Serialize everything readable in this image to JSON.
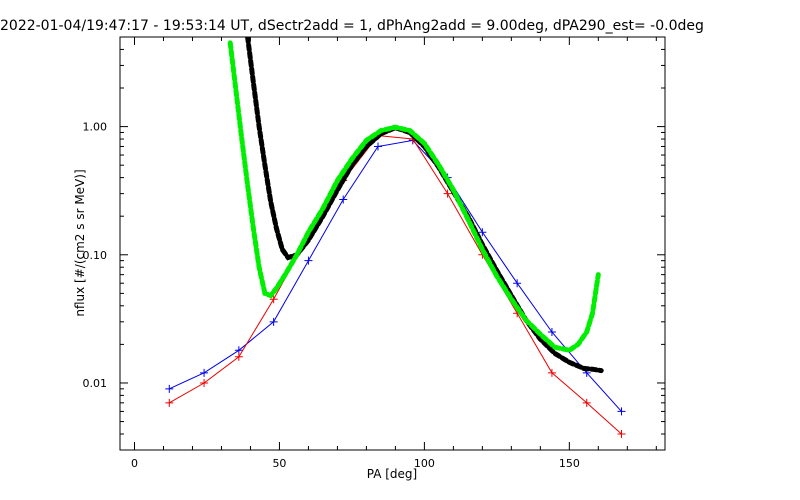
{
  "chart_data": {
    "type": "line",
    "title": "2022-01-04/19:47:17 - 19:53:14 UT, dSectr2add = 1, dPhAng2add = 9.00deg, dPA290_est=  -0.0deg",
    "xlabel": "PA [deg]",
    "ylabel": "nflux [#/(cm2 s sr MeV)]",
    "xlim": [
      -5,
      183
    ],
    "ylim": [
      0.003,
      5.0
    ],
    "yscale": "log",
    "grid": false,
    "legend": "none",
    "x_ticks": [
      {
        "value": 0,
        "label": "0"
      },
      {
        "value": 50,
        "label": "50"
      },
      {
        "value": 100,
        "label": "100"
      },
      {
        "value": 150,
        "label": "150"
      }
    ],
    "y_ticks": [
      {
        "value": 0.01,
        "label": "0.01"
      },
      {
        "value": 0.1,
        "label": "0.10"
      },
      {
        "value": 1.0,
        "label": "1.00"
      }
    ],
    "colors": {
      "series_red": "#ee0000",
      "series_blue": "#0000ee",
      "fit_black": "#000000",
      "fit_green": "#00ee00",
      "axes": "#000000"
    },
    "series": [
      {
        "color_key": "series_blue",
        "style": "line+plus",
        "x": [
          12,
          24,
          36,
          48,
          60,
          72,
          84,
          96,
          108,
          120,
          132,
          144,
          156,
          168
        ],
        "y": [
          0.009,
          0.012,
          0.018,
          0.03,
          0.09,
          0.27,
          0.7,
          0.78,
          0.4,
          0.15,
          0.06,
          0.025,
          0.012,
          0.006
        ]
      },
      {
        "color_key": "series_red",
        "style": "line+plus",
        "x": [
          12,
          24,
          36,
          48,
          60,
          72,
          84,
          96,
          108,
          120,
          132,
          144,
          156,
          168
        ],
        "y": [
          0.007,
          0.01,
          0.016,
          0.045,
          0.14,
          0.38,
          0.85,
          0.8,
          0.3,
          0.1,
          0.035,
          0.012,
          0.007,
          0.004
        ]
      },
      {
        "color_key": "fit_black",
        "style": "dashed-thick",
        "x": [
          39,
          41,
          43,
          45,
          47,
          49,
          51,
          53,
          56,
          60,
          65,
          70,
          75,
          80,
          85,
          90,
          95,
          100,
          105,
          110,
          115,
          120,
          125,
          130,
          135,
          140,
          145,
          150,
          155,
          158,
          161
        ],
        "y": [
          5.0,
          2.2,
          1.0,
          0.5,
          0.26,
          0.16,
          0.11,
          0.095,
          0.1,
          0.13,
          0.2,
          0.32,
          0.5,
          0.7,
          0.88,
          0.98,
          0.9,
          0.7,
          0.48,
          0.31,
          0.2,
          0.12,
          0.075,
          0.048,
          0.031,
          0.022,
          0.017,
          0.0145,
          0.013,
          0.0128,
          0.0125
        ]
      },
      {
        "color_key": "fit_green",
        "style": "dashed-thick",
        "x": [
          33,
          35,
          37,
          39,
          41,
          43,
          45,
          47,
          49,
          52,
          56,
          60,
          65,
          70,
          75,
          80,
          85,
          90,
          95,
          100,
          105,
          110,
          115,
          120,
          125,
          130,
          135,
          140,
          145,
          150,
          153,
          156,
          158,
          160
        ],
        "y": [
          4.5,
          1.9,
          0.8,
          0.35,
          0.16,
          0.08,
          0.05,
          0.048,
          0.055,
          0.07,
          0.1,
          0.15,
          0.23,
          0.38,
          0.56,
          0.78,
          0.93,
          0.99,
          0.93,
          0.74,
          0.5,
          0.32,
          0.19,
          0.11,
          0.068,
          0.045,
          0.031,
          0.024,
          0.019,
          0.018,
          0.02,
          0.025,
          0.035,
          0.07
        ]
      }
    ]
  }
}
